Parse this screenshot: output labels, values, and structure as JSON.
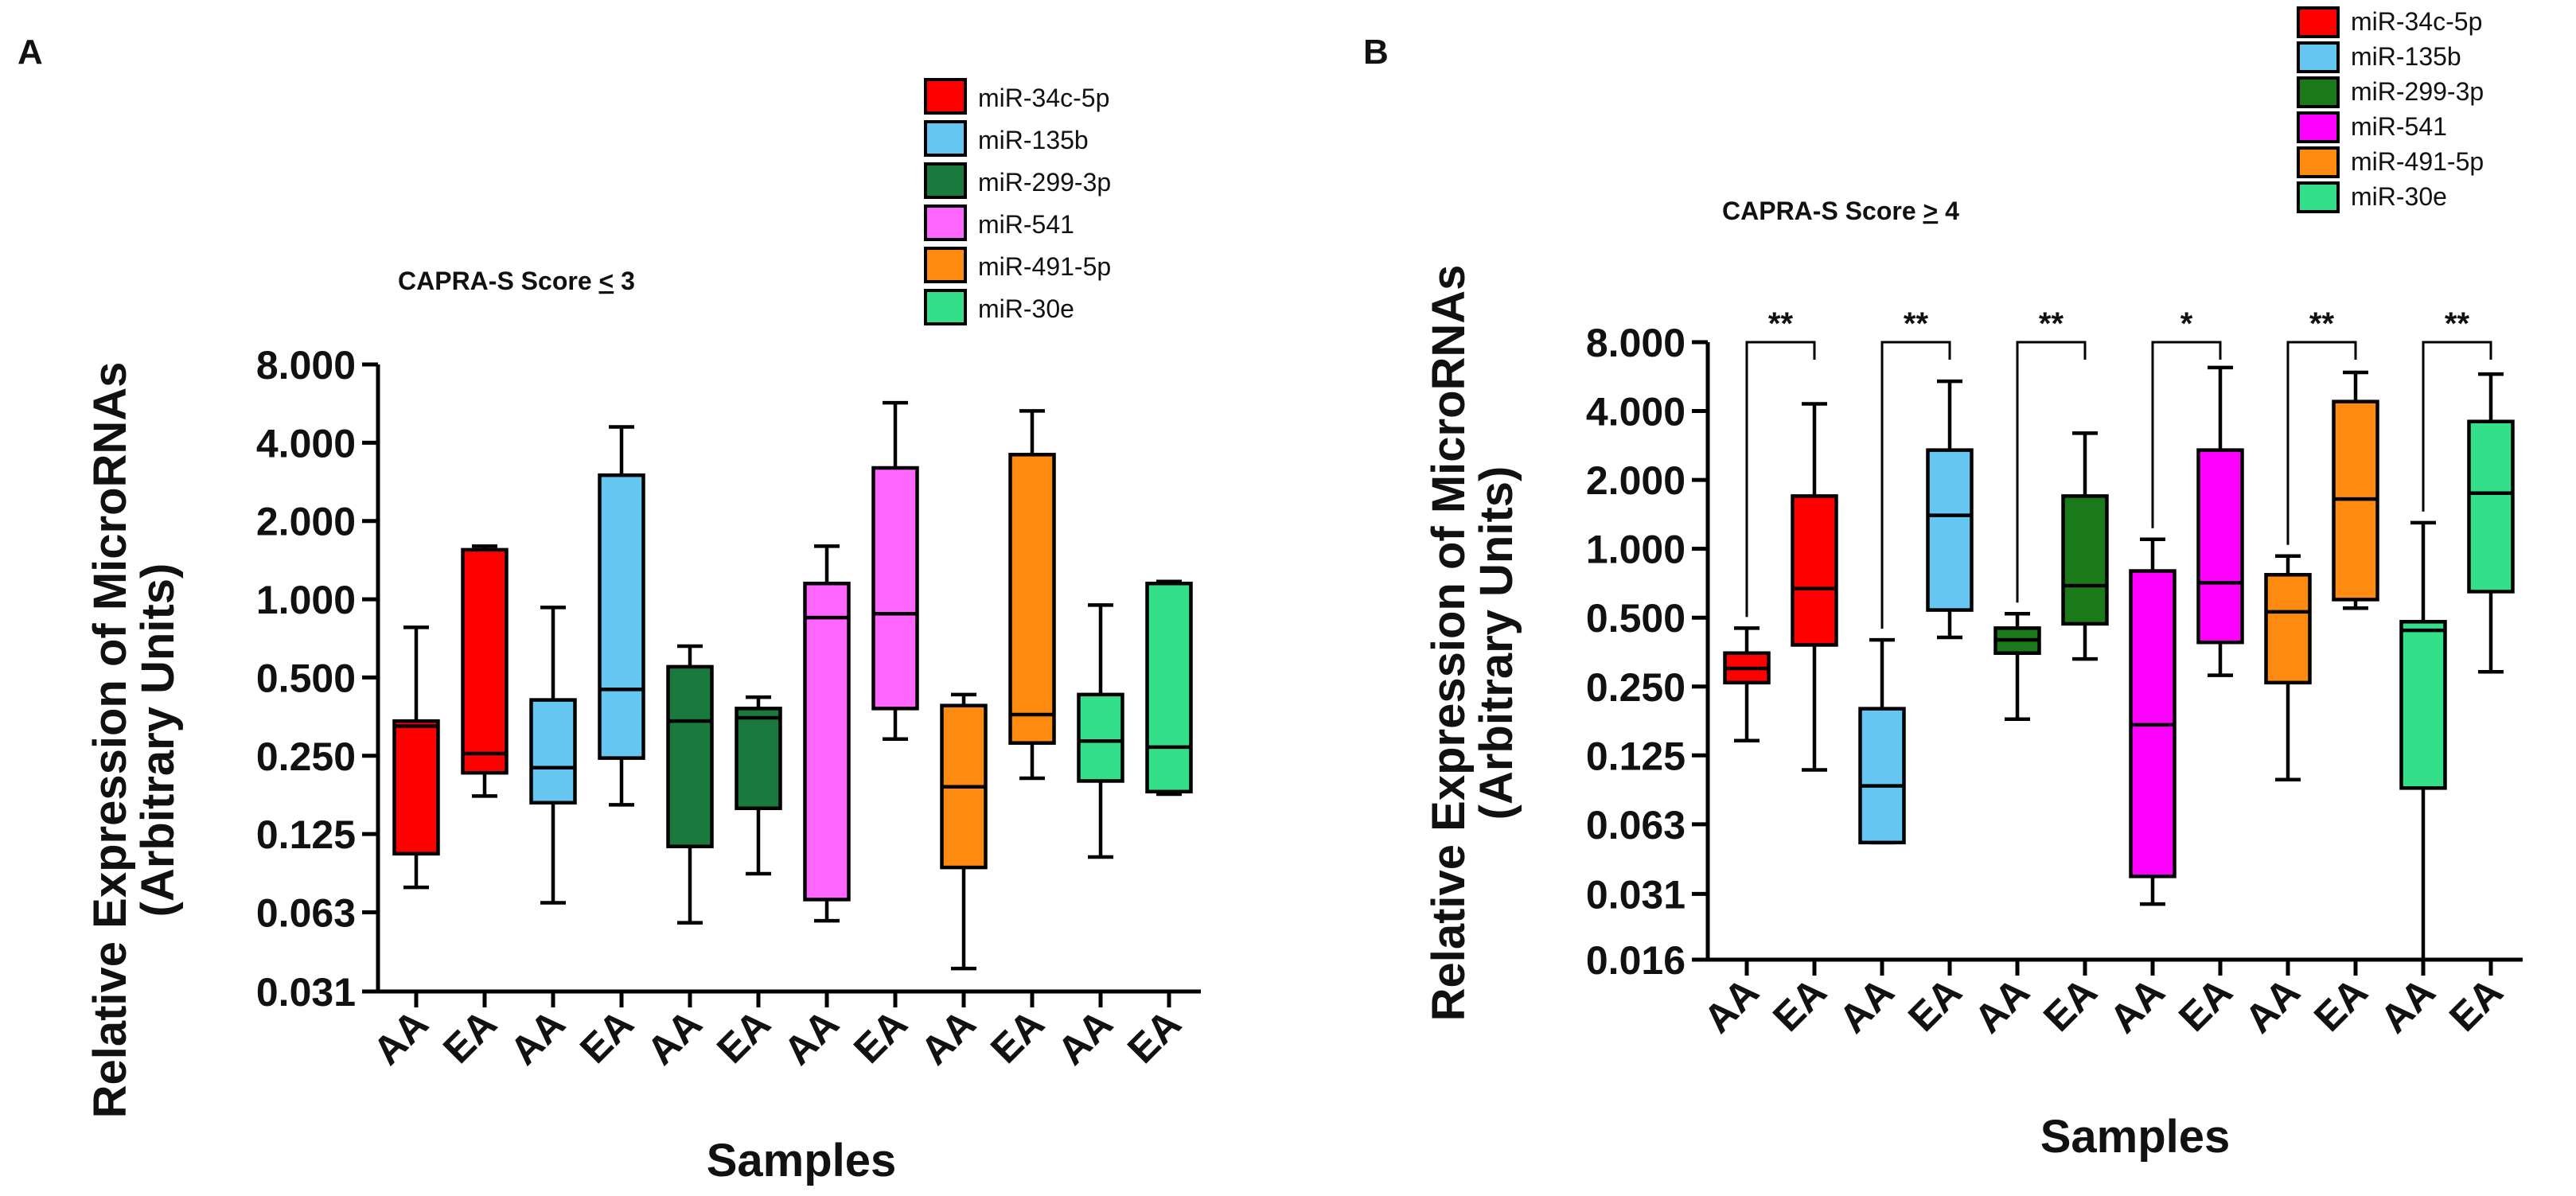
{
  "chart_data": [
    {
      "panel": "A",
      "type": "box",
      "title": "CAPRA-S Score ≤ 3",
      "title_parts": [
        "CAPRA-S Score ",
        "<",
        " 3"
      ],
      "xlabel": "Samples",
      "ylabel": [
        "Relative Expression of MicroRNAs",
        "(Arbitrary Units)"
      ],
      "yscale": "log2",
      "ylim": [
        0.031,
        8.0
      ],
      "yticks": [
        {
          "value": 0.031,
          "label": "0.031"
        },
        {
          "value": 0.0625,
          "label": "0.063"
        },
        {
          "value": 0.125,
          "label": "0.125"
        },
        {
          "value": 0.25,
          "label": "0.250"
        },
        {
          "value": 0.5,
          "label": "0.500"
        },
        {
          "value": 1,
          "label": "1.000"
        },
        {
          "value": 2,
          "label": "2.000"
        },
        {
          "value": 4,
          "label": "4.000"
        },
        {
          "value": 8,
          "label": "8.000"
        }
      ],
      "categories": [
        "AA",
        "EA",
        "AA",
        "EA",
        "AA",
        "EA",
        "AA",
        "EA",
        "AA",
        "EA",
        "AA",
        "EA"
      ],
      "legend": [
        {
          "name": "miR-34c-5p",
          "color": "#ff0000"
        },
        {
          "name": "miR-135b",
          "color": "#66c6f2"
        },
        {
          "name": "miR-299-3p",
          "color": "#1a7a3e"
        },
        {
          "name": "miR-541",
          "color": "#ff66ff"
        },
        {
          "name": "miR-491-5p",
          "color": "#ff8a10"
        },
        {
          "name": "miR-30e",
          "color": "#33e089"
        }
      ],
      "boxes": [
        {
          "series": "miR-34c-5p",
          "group": "AA",
          "min": 0.078,
          "q1": 0.105,
          "median": 0.325,
          "q3": 0.34,
          "max": 0.78
        },
        {
          "series": "miR-34c-5p",
          "group": "EA",
          "min": 0.175,
          "q1": 0.215,
          "median": 0.255,
          "q3": 1.55,
          "max": 1.6
        },
        {
          "series": "miR-135b",
          "group": "AA",
          "min": 0.068,
          "q1": 0.165,
          "median": 0.225,
          "q3": 0.41,
          "max": 0.93
        },
        {
          "series": "miR-135b",
          "group": "EA",
          "min": 0.162,
          "q1": 0.245,
          "median": 0.45,
          "q3": 3.0,
          "max": 4.6
        },
        {
          "series": "miR-299-3p",
          "group": "AA",
          "min": 0.057,
          "q1": 0.112,
          "median": 0.34,
          "q3": 0.55,
          "max": 0.66
        },
        {
          "series": "miR-299-3p",
          "group": "EA",
          "min": 0.088,
          "q1": 0.157,
          "median": 0.35,
          "q3": 0.38,
          "max": 0.42
        },
        {
          "series": "miR-541",
          "group": "AA",
          "min": 0.058,
          "q1": 0.07,
          "median": 0.85,
          "q3": 1.15,
          "max": 1.6
        },
        {
          "series": "miR-541",
          "group": "EA",
          "min": 0.29,
          "q1": 0.38,
          "median": 0.88,
          "q3": 3.2,
          "max": 5.7
        },
        {
          "series": "miR-491-5p",
          "group": "AA",
          "min": 0.038,
          "q1": 0.093,
          "median": 0.19,
          "q3": 0.39,
          "max": 0.43
        },
        {
          "series": "miR-491-5p",
          "group": "EA",
          "min": 0.205,
          "q1": 0.28,
          "median": 0.36,
          "q3": 3.6,
          "max": 5.3
        },
        {
          "series": "miR-30e",
          "group": "AA",
          "min": 0.102,
          "q1": 0.2,
          "median": 0.285,
          "q3": 0.43,
          "max": 0.95
        },
        {
          "series": "miR-30e",
          "group": "EA",
          "min": 0.178,
          "q1": 0.182,
          "median": 0.27,
          "q3": 1.15,
          "max": 1.17
        }
      ]
    },
    {
      "panel": "B",
      "type": "box",
      "title": "CAPRA-S Score ≥ 4",
      "title_parts": [
        "CAPRA-S Score ",
        ">",
        " 4"
      ],
      "xlabel": "Samples",
      "ylabel": [
        "Relative Expression of MicroRNAs",
        "(Arbitrary Units)"
      ],
      "yscale": "log2",
      "ylim": [
        0.016,
        8.0
      ],
      "yticks": [
        {
          "value": 0.016,
          "label": "0.016"
        },
        {
          "value": 0.031,
          "label": "0.031"
        },
        {
          "value": 0.0625,
          "label": "0.063"
        },
        {
          "value": 0.125,
          "label": "0.125"
        },
        {
          "value": 0.25,
          "label": "0.250"
        },
        {
          "value": 0.5,
          "label": "0.500"
        },
        {
          "value": 1,
          "label": "1.000"
        },
        {
          "value": 2,
          "label": "2.000"
        },
        {
          "value": 4,
          "label": "4.000"
        },
        {
          "value": 8,
          "label": "8.000"
        }
      ],
      "categories": [
        "AA",
        "EA",
        "AA",
        "EA",
        "AA",
        "EA",
        "AA",
        "EA",
        "AA",
        "EA",
        "AA",
        "EA"
      ],
      "legend": [
        {
          "name": "miR-34c-5p",
          "color": "#ff0000"
        },
        {
          "name": "miR-135b",
          "color": "#66c6f2"
        },
        {
          "name": "miR-299-3p",
          "color": "#1a7a1a"
        },
        {
          "name": "miR-541",
          "color": "#ff00ff"
        },
        {
          "name": "miR-491-5p",
          "color": "#ff8a10"
        },
        {
          "name": "miR-30e",
          "color": "#33e089"
        }
      ],
      "boxes": [
        {
          "series": "miR-34c-5p",
          "group": "AA",
          "min": 0.145,
          "q1": 0.26,
          "median": 0.3,
          "q3": 0.35,
          "max": 0.45
        },
        {
          "series": "miR-34c-5p",
          "group": "EA",
          "min": 0.108,
          "q1": 0.38,
          "median": 0.67,
          "q3": 1.7,
          "max": 4.3
        },
        {
          "series": "miR-135b",
          "group": "AA",
          "min": 0.052,
          "q1": 0.052,
          "median": 0.092,
          "q3": 0.2,
          "max": 0.4
        },
        {
          "series": "miR-135b",
          "group": "EA",
          "min": 0.41,
          "q1": 0.54,
          "median": 1.4,
          "q3": 2.7,
          "max": 5.4
        },
        {
          "series": "miR-299-3p",
          "group": "AA",
          "min": 0.18,
          "q1": 0.35,
          "median": 0.4,
          "q3": 0.45,
          "max": 0.52
        },
        {
          "series": "miR-299-3p",
          "group": "EA",
          "min": 0.33,
          "q1": 0.47,
          "median": 0.69,
          "q3": 1.7,
          "max": 3.2
        },
        {
          "series": "miR-541",
          "group": "AA",
          "min": 0.028,
          "q1": 0.037,
          "median": 0.17,
          "q3": 0.8,
          "max": 1.1
        },
        {
          "series": "miR-541",
          "group": "EA",
          "min": 0.28,
          "q1": 0.39,
          "median": 0.71,
          "q3": 2.7,
          "max": 6.2
        },
        {
          "series": "miR-491-5p",
          "group": "AA",
          "min": 0.098,
          "q1": 0.26,
          "median": 0.53,
          "q3": 0.77,
          "max": 0.93
        },
        {
          "series": "miR-491-5p",
          "group": "EA",
          "min": 0.55,
          "q1": 0.6,
          "median": 1.65,
          "q3": 4.4,
          "max": 5.9
        },
        {
          "series": "miR-30e",
          "group": "AA",
          "min": 0.016,
          "q1": 0.09,
          "median": 0.44,
          "q3": 0.48,
          "max": 1.3
        },
        {
          "series": "miR-30e",
          "group": "EA",
          "min": 0.29,
          "q1": 0.65,
          "median": 1.75,
          "q3": 3.6,
          "max": 5.8
        }
      ],
      "significance": [
        {
          "series": "miR-34c-5p",
          "label": "**"
        },
        {
          "series": "miR-135b",
          "label": "**"
        },
        {
          "series": "miR-299-3p",
          "label": "**"
        },
        {
          "series": "miR-541",
          "label": "*"
        },
        {
          "series": "miR-491-5p",
          "label": "**"
        },
        {
          "series": "miR-30e",
          "label": "**"
        }
      ]
    }
  ]
}
